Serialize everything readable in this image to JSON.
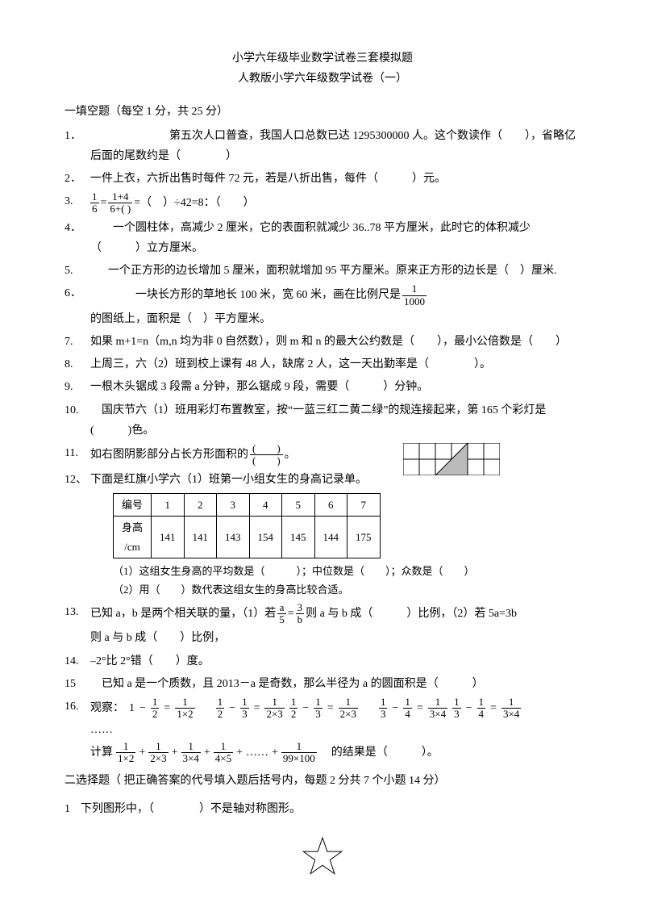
{
  "titles": {
    "line1": "小学六年级毕业数学试卷三套模拟题",
    "line2": "人教版小学六年级数学试卷（一）"
  },
  "section1": {
    "header": "一填空题（每空 1 分，共 25 分）"
  },
  "q1": {
    "num": "1．",
    "text": "　　　　　　　第五次人口普查，我国人口总数已达 1295300000 人。这个数读作（　　），省略亿后面的尾数约是（　　　　）"
  },
  "q2": {
    "num": "2．",
    "text": "一件上衣，六折出售时每件 72 元，若是八折出售，每件（　　　）元。"
  },
  "q3": {
    "num": "3.",
    "frac1_n": "1",
    "frac1_d": "6",
    "frac2_n": "1+4",
    "frac2_d": "6+( )",
    "tail": "=（　）÷42=8：（　　）"
  },
  "q4": {
    "num": "4．",
    "text": "　　一个圆柱体，高减少 2 厘米，它的表面积就减少 36..78 平方厘米，此时它的体积减少（　　　）立方厘米。"
  },
  "q5": {
    "num": "5.",
    "text": "　　一个正方形的边长增加 5 厘米，面积就增加 95 平方厘米。原来正方形的边长是（　）厘米."
  },
  "q6": {
    "num": "6．",
    "pre": "　　　　一块长方形的草地长 100 米，宽 60 米，画在比例尺是 ",
    "frac_n": "1",
    "frac_d": "1000",
    "post": " 的图纸上，面积是（　）平方厘米。"
  },
  "q7": {
    "num": "7.",
    "text": "如果 m+1=n（m,n 均为非 0 自然数），则 m 和 n 的最大公约数是（　　），最小公倍数是（　　）"
  },
  "q8": {
    "num": "8.",
    "text": "上周三，六（2）班到校上课有 48 人，缺席 2 人，这一天出勤率是（　　　　）。"
  },
  "q9": {
    "num": "9.",
    "text": "一根木头锯成 3 段需 a 分钟，那么锯成 9 段，需要（　　　）分钟。"
  },
  "q10": {
    "num": "10.",
    "text": "　国庆节六（1）班用彩灯布置教室，按“一蓝三红二黄二绿”的规连接起来，第 165 个彩灯是(　　　)色。"
  },
  "q11": {
    "num": "11.",
    "pre": "如右图阴影部分占长方形面积的",
    "frac_n": "(　　)",
    "frac_d": "(　　)",
    "post": "。",
    "grid": {
      "cols": 6,
      "rows": 2,
      "cell": 20,
      "stroke": "#000"
    }
  },
  "q12": {
    "num": "12、",
    "lead": "下面是红旗小学六（1）班第一小组女生的身高记录单。",
    "cols": [
      "编号",
      "1",
      "2",
      "3",
      "4",
      "5",
      "6",
      "7"
    ],
    "rowlabel": "身高/cm",
    "vals": [
      "141",
      "141",
      "143",
      "154",
      "145",
      "144",
      "175"
    ],
    "sub1": "（1）这组女生身高的平均数是（　　　）；中位数是（　　）；众数是（　　）",
    "sub2": "（2）用（　　）数代表这组女生的身高比较合适。"
  },
  "q13": {
    "num": "13.",
    "pre": "已知 a，b 是两个相关联的量，（1）若",
    "f1n": "a",
    "f1d": "5",
    "eq": "=",
    "f2n": "3",
    "f2d": "b",
    "mid": "则 a 与 b 成（　　　）比例，（2）若 5a=3b",
    "line2": "则 a 与 b 成（　　）比例，"
  },
  "q14": {
    "num": "14.",
    "text": "–2°比 2°错（　　）度。"
  },
  "q15": {
    "num": "15",
    "text": "　已知 a 是一个质数，且 2013－a 是奇数，那么半径为 a 的圆面积是（　　　）"
  },
  "q16": {
    "num": "16.",
    "lead": "观察：",
    "t1": {
      "a": "1",
      "bN": "1",
      "bD": "2",
      "eq": "=",
      "rN": "1",
      "rD": "1×2"
    },
    "t2": {
      "aN": "1",
      "aD": "2",
      "bN": "1",
      "bD": "3",
      "eq": "=",
      "rN": "1",
      "rD": "2×3"
    },
    "t3": {
      "aN": "1",
      "aD": "2",
      "bN": "1",
      "bD": "3",
      "eq": "=",
      "rN": "1",
      "rD": "2×3"
    },
    "t4": {
      "aN": "1",
      "aD": "3",
      "bN": "1",
      "bD": "4",
      "eq": "=",
      "rN": "1",
      "rD": "3×4"
    },
    "t5": {
      "aN": "1",
      "aD": "3",
      "bN": "1",
      "bD": "4",
      "eq": "=",
      "rN": "1",
      "rD": "3×4"
    },
    "dots": "……",
    "calc": "计算",
    "s1N": "1",
    "s1D": "1×2",
    "s2N": "1",
    "s2D": "2×3",
    "s3N": "1",
    "s3D": "3×4",
    "s4N": "1",
    "s4D": "4×5",
    "sdots": "……",
    "plus": "+",
    "snN": "1",
    "snD": "99×100",
    "tail": "　的结果是（　　　）。"
  },
  "section2": {
    "header": "二选择题（ 把正确答案的代号填入题后括号内，每题 2 分共 7 个小题 14 分）"
  },
  "s2q1": {
    "num": "1",
    "text": "下列图形中，（　　　　）不是轴对称图形。"
  },
  "star": {
    "stroke": "#000",
    "size": 50
  }
}
